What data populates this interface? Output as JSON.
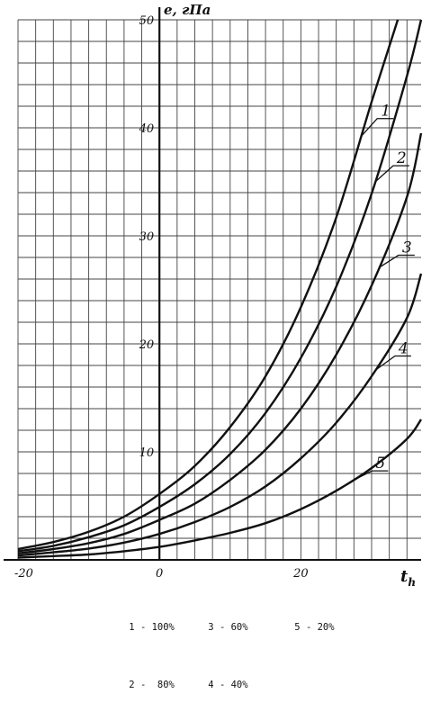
{
  "chart_data": {
    "type": "line",
    "y_axis_label": "e, гПа",
    "x_axis_label": "t",
    "x_axis_label_sub": "h",
    "xlim": [
      -20,
      37
    ],
    "ylim": [
      0,
      50
    ],
    "x_ticks": [
      {
        "value": -20,
        "label": "-20"
      },
      {
        "value": 0,
        "label": "0"
      },
      {
        "value": 20,
        "label": "20"
      }
    ],
    "y_ticks": [
      {
        "value": 10,
        "label": "10"
      },
      {
        "value": 20,
        "label": "20"
      },
      {
        "value": 30,
        "label": "30"
      },
      {
        "value": 40,
        "label": "40"
      },
      {
        "value": 50,
        "label": "50"
      }
    ],
    "grid": true,
    "series": [
      {
        "name": "1",
        "x": [
          -20,
          -15,
          -10,
          -5,
          0,
          5,
          10,
          15,
          20,
          25,
          30,
          33.7
        ],
        "values": [
          1.0,
          1.65,
          2.6,
          4.0,
          6.1,
          8.7,
          12.3,
          17.0,
          23.4,
          31.7,
          42.4,
          50.0
        ]
      },
      {
        "name": "2",
        "x": [
          -20,
          -15,
          -10,
          -5,
          0,
          5,
          10,
          15,
          20,
          25,
          30,
          35,
          37
        ],
        "values": [
          0.8,
          1.3,
          2.1,
          3.2,
          4.9,
          7.0,
          9.8,
          13.6,
          18.7,
          25.3,
          33.9,
          44.8,
          50.0
        ]
      },
      {
        "name": "3",
        "x": [
          -20,
          -15,
          -10,
          -5,
          0,
          5,
          10,
          15,
          20,
          25,
          30,
          35,
          37
        ],
        "values": [
          0.6,
          1.0,
          1.55,
          2.4,
          3.7,
          5.2,
          7.4,
          10.2,
          14.0,
          19.0,
          25.4,
          33.6,
          39.5
        ]
      },
      {
        "name": "4",
        "x": [
          -20,
          -15,
          -10,
          -5,
          0,
          5,
          10,
          15,
          20,
          25,
          30,
          35,
          37
        ],
        "values": [
          0.4,
          0.7,
          1.05,
          1.6,
          2.4,
          3.5,
          4.9,
          6.8,
          9.4,
          12.7,
          17.0,
          22.4,
          26.5
        ]
      },
      {
        "name": "5",
        "x": [
          -20,
          -15,
          -10,
          -5,
          0,
          5,
          10,
          15,
          20,
          25,
          30,
          35,
          37
        ],
        "values": [
          0.2,
          0.35,
          0.5,
          0.8,
          1.2,
          1.8,
          2.5,
          3.4,
          4.7,
          6.4,
          8.5,
          11.2,
          13.0
        ]
      }
    ],
    "curve_labels": [
      "1",
      "2",
      "3",
      "4",
      "5"
    ],
    "legend_rows": [
      [
        "1 - 100%",
        "3 - 60%",
        "5 - 20%"
      ],
      [
        "2 -  80%",
        "4 - 40%",
        ""
      ]
    ]
  }
}
